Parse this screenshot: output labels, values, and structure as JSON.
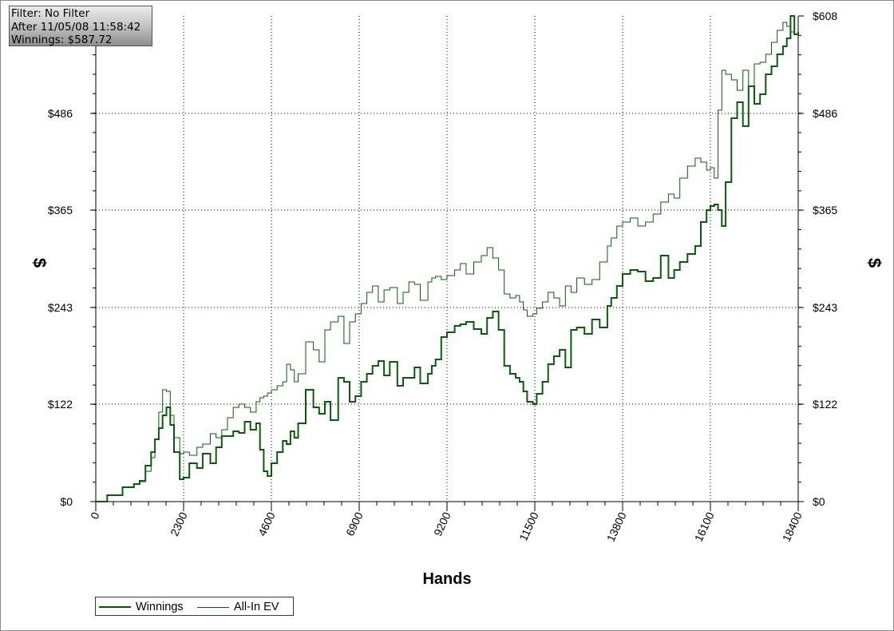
{
  "info_box": {
    "filter": "Filter: No Filter",
    "after": "After 11/05/08 11:58:42",
    "winnings": "Winnings: $587.72"
  },
  "colors": {
    "line": "#0a5c0a",
    "grid": "#000000",
    "axis": "#000000"
  },
  "chart_data": {
    "type": "line",
    "xlabel": "Hands",
    "ylabel": "$",
    "xlim": [
      0,
      18400
    ],
    "ylim": [
      0,
      608
    ],
    "x_ticks": [
      "0",
      "2300",
      "4600",
      "6900",
      "9200",
      "11500",
      "13800",
      "16100",
      "18400"
    ],
    "y_ticks": [
      "$0",
      "$122",
      "$243",
      "$365",
      "$486",
      "$608"
    ],
    "y_tick_values": [
      0,
      122,
      243,
      365,
      486,
      608
    ],
    "grid": true,
    "legend_position": "bottom-left",
    "series": [
      {
        "name": "Winnings",
        "x": [
          0,
          300,
          700,
          1000,
          1150,
          1300,
          1450,
          1550,
          1650,
          1750,
          1850,
          1950,
          2050,
          2200,
          2300,
          2450,
          2650,
          2800,
          3000,
          3150,
          3300,
          3450,
          3600,
          3750,
          3900,
          4050,
          4200,
          4300,
          4400,
          4500,
          4600,
          4750,
          4900,
          5000,
          5100,
          5200,
          5300,
          5500,
          5700,
          5850,
          6000,
          6150,
          6350,
          6500,
          6650,
          6800,
          6950,
          7100,
          7250,
          7400,
          7550,
          7700,
          7900,
          8050,
          8200,
          8350,
          8500,
          8700,
          8800,
          8900,
          9050,
          9200,
          9400,
          9550,
          9700,
          9900,
          10100,
          10250,
          10400,
          10550,
          10700,
          10850,
          11000,
          11100,
          11200,
          11300,
          11450,
          11550,
          11700,
          11850,
          12000,
          12150,
          12300,
          12450,
          12600,
          12800,
          13000,
          13200,
          13400,
          13500,
          13650,
          13800,
          14000,
          14200,
          14400,
          14600,
          14800,
          15000,
          15150,
          15300,
          15500,
          15700,
          15850,
          16000,
          16100,
          16200,
          16300,
          16400,
          16500,
          16650,
          16800,
          16950,
          17100,
          17250,
          17400,
          17550,
          17700,
          17850,
          18000,
          18100,
          18200,
          18300,
          18400
        ],
        "values": [
          0,
          8,
          18,
          22,
          26,
          45,
          62,
          78,
          92,
          108,
          118,
          96,
          62,
          28,
          30,
          48,
          42,
          60,
          48,
          68,
          82,
          82,
          88,
          86,
          100,
          90,
          98,
          65,
          38,
          32,
          48,
          62,
          76,
          72,
          88,
          80,
          98,
          140,
          118,
          110,
          125,
          102,
          155,
          150,
          125,
          132,
          150,
          160,
          170,
          176,
          158,
          175,
          145,
          155,
          155,
          168,
          148,
          160,
          170,
          178,
          206,
          212,
          220,
          222,
          225,
          216,
          210,
          230,
          238,
          215,
          170,
          160,
          155,
          150,
          138,
          125,
          122,
          135,
          150,
          172,
          182,
          190,
          168,
          215,
          218,
          210,
          228,
          218,
          245,
          255,
          270,
          285,
          290,
          288,
          276,
          280,
          308,
          280,
          290,
          300,
          310,
          320,
          350,
          365,
          370,
          372,
          365,
          345,
          400,
          480,
          500,
          470,
          520,
          498,
          510,
          535,
          545,
          560,
          570,
          580,
          608,
          585,
          588
        ]
      },
      {
        "name": "All-In EV",
        "x": [
          0,
          300,
          700,
          1000,
          1150,
          1300,
          1450,
          1550,
          1650,
          1750,
          1850,
          1950,
          2050,
          2200,
          2300,
          2450,
          2650,
          2800,
          3000,
          3150,
          3300,
          3450,
          3600,
          3750,
          3900,
          4050,
          4200,
          4300,
          4400,
          4500,
          4600,
          4750,
          4900,
          5000,
          5100,
          5200,
          5300,
          5500,
          5700,
          5850,
          6000,
          6150,
          6350,
          6500,
          6650,
          6800,
          6950,
          7100,
          7250,
          7400,
          7550,
          7700,
          7900,
          8050,
          8200,
          8350,
          8500,
          8700,
          8800,
          8900,
          9050,
          9200,
          9400,
          9550,
          9700,
          9900,
          10100,
          10250,
          10400,
          10550,
          10700,
          10850,
          11000,
          11100,
          11200,
          11300,
          11450,
          11550,
          11700,
          11850,
          12000,
          12150,
          12300,
          12450,
          12600,
          12800,
          13000,
          13200,
          13400,
          13500,
          13650,
          13800,
          14000,
          14200,
          14400,
          14600,
          14800,
          15000,
          15150,
          15300,
          15500,
          15700,
          15850,
          16000,
          16100,
          16200,
          16300,
          16400,
          16500,
          16650,
          16800,
          16950,
          17100,
          17250,
          17400,
          17550,
          17700,
          17850,
          18000,
          18100,
          18200,
          18300,
          18400
        ],
        "values": [
          0,
          8,
          18,
          22,
          25,
          38,
          55,
          78,
          112,
          140,
          138,
          108,
          80,
          60,
          62,
          58,
          68,
          72,
          85,
          80,
          90,
          105,
          118,
          122,
          118,
          112,
          125,
          130,
          132,
          136,
          140,
          145,
          150,
          172,
          165,
          150,
          160,
          200,
          190,
          175,
          215,
          225,
          232,
          198,
          225,
          235,
          248,
          262,
          270,
          250,
          265,
          268,
          248,
          262,
          275,
          272,
          252,
          275,
          280,
          282,
          278,
          283,
          290,
          298,
          285,
          300,
          308,
          318,
          305,
          290,
          260,
          255,
          258,
          250,
          240,
          232,
          235,
          242,
          250,
          262,
          255,
          245,
          270,
          262,
          280,
          272,
          278,
          300,
          320,
          330,
          345,
          350,
          355,
          345,
          350,
          360,
          375,
          385,
          380,
          405,
          420,
          430,
          425,
          415,
          418,
          405,
          490,
          540,
          535,
          528,
          515,
          540,
          520,
          548,
          550,
          560,
          575,
          590,
          600,
          595,
          588,
          585,
          585
        ]
      }
    ]
  }
}
